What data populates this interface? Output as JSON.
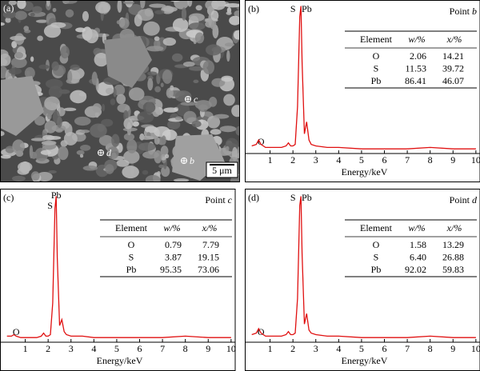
{
  "sem": {
    "label": "(a)",
    "points": [
      "c",
      "d",
      "b"
    ],
    "scale": "5 μm"
  },
  "chart_data": [
    {
      "type": "line",
      "panel": "(b)",
      "point": "Point",
      "point_id": "b",
      "annotations": [
        "S",
        "Pb",
        "O"
      ],
      "x": [
        0.2,
        0.4,
        0.5,
        0.6,
        0.8,
        1.0,
        1.2,
        1.5,
        1.7,
        1.8,
        1.9,
        2.0,
        2.1,
        2.2,
        2.3,
        2.35,
        2.4,
        2.5,
        2.6,
        2.7,
        2.8,
        3.0,
        3.5,
        4,
        5,
        6,
        7,
        8,
        9,
        10
      ],
      "series": [
        {
          "color": "#e01010",
          "values": [
            4,
            5,
            8,
            5,
            3,
            3,
            3,
            3,
            4,
            6,
            4,
            4,
            5,
            30,
            90,
            97,
            60,
            12,
            20,
            8,
            5,
            4,
            3,
            3,
            2,
            2,
            2,
            3,
            2,
            2
          ]
        }
      ],
      "xlim": [
        0,
        10.25
      ],
      "ylim": [
        0,
        100
      ],
      "xticks": [
        1,
        2,
        3,
        4,
        5,
        6,
        7,
        8,
        9,
        10
      ],
      "xlabel": "Energy/keV",
      "table": {
        "header": [
          "Element",
          "w/%",
          "x/%"
        ],
        "rows": [
          [
            "O",
            "2.06",
            "14.21"
          ],
          [
            "S",
            "11.53",
            "39.72"
          ],
          [
            "Pb",
            "86.41",
            "46.07"
          ]
        ]
      }
    },
    {
      "type": "line",
      "panel": "(c)",
      "point": "Point",
      "point_id": "c",
      "annotations": [
        "Pb",
        "S",
        "O"
      ],
      "x": [
        0.2,
        0.4,
        0.5,
        0.6,
        0.8,
        1.0,
        1.2,
        1.5,
        1.7,
        1.8,
        1.9,
        2.0,
        2.1,
        2.2,
        2.3,
        2.35,
        2.4,
        2.5,
        2.6,
        2.7,
        2.8,
        3.0,
        3.5,
        4,
        5,
        6,
        7,
        8,
        9,
        10
      ],
      "series": [
        {
          "color": "#e01010",
          "values": [
            3,
            3,
            4,
            3,
            2,
            2,
            2,
            2,
            3,
            5,
            3,
            3,
            4,
            25,
            88,
            96,
            55,
            10,
            14,
            6,
            4,
            3,
            3,
            2,
            2,
            2,
            2,
            3,
            2,
            2
          ]
        }
      ],
      "xlim": [
        0,
        10.25
      ],
      "ylim": [
        0,
        100
      ],
      "xticks": [
        1,
        2,
        3,
        4,
        5,
        6,
        7,
        8,
        9,
        10
      ],
      "xlabel": "Energy/keV",
      "table": {
        "header": [
          "Element",
          "w/%",
          "x/%"
        ],
        "rows": [
          [
            "O",
            "0.79",
            "7.79"
          ],
          [
            "S",
            "3.87",
            "19.15"
          ],
          [
            "Pb",
            "95.35",
            "73.06"
          ]
        ]
      }
    },
    {
      "type": "line",
      "panel": "(d)",
      "point": "Point",
      "point_id": "d",
      "annotations": [
        "S",
        "Pb",
        "O"
      ],
      "x": [
        0.2,
        0.4,
        0.5,
        0.6,
        0.8,
        1.0,
        1.2,
        1.5,
        1.7,
        1.8,
        1.9,
        2.0,
        2.1,
        2.2,
        2.3,
        2.35,
        2.4,
        2.5,
        2.6,
        2.7,
        2.8,
        3.0,
        3.5,
        4,
        5,
        6,
        7,
        8,
        9,
        10
      ],
      "series": [
        {
          "color": "#e01010",
          "values": [
            4,
            5,
            8,
            5,
            3,
            3,
            3,
            3,
            4,
            6,
            4,
            4,
            5,
            28,
            90,
            96,
            58,
            11,
            18,
            7,
            5,
            4,
            3,
            3,
            2,
            2,
            2,
            3,
            2,
            2
          ]
        }
      ],
      "xlim": [
        0,
        10.25
      ],
      "ylim": [
        0,
        100
      ],
      "xticks": [
        1,
        2,
        3,
        4,
        5,
        6,
        7,
        8,
        9,
        10
      ],
      "xlabel": "Energy/keV",
      "table": {
        "header": [
          "Element",
          "w/%",
          "x/%"
        ],
        "rows": [
          [
            "O",
            "1.58",
            "13.29"
          ],
          [
            "S",
            "6.40",
            "26.88"
          ],
          [
            "Pb",
            "92.02",
            "59.83"
          ]
        ]
      }
    }
  ]
}
